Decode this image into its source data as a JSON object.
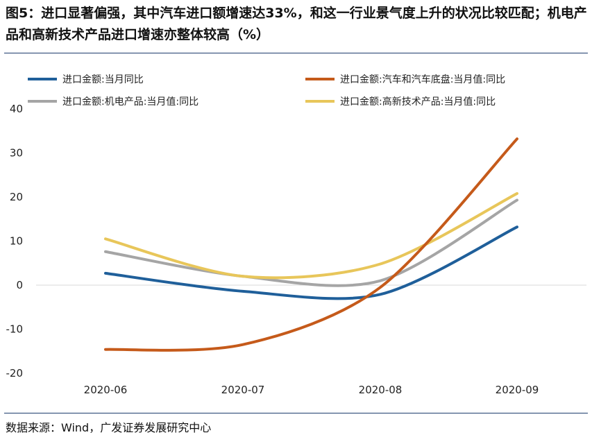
{
  "figure": {
    "title": "图5：进口显著偏强，其中汽车进口额增速达33%，和这一行业景气度上升的状况比较匹配；机电产品和高新技术产品进口增速亦整体较高（%）",
    "source": "数据来源：Wind，广发证券发展研究中心"
  },
  "chart_data": {
    "type": "line",
    "title": "",
    "xlabel": "",
    "ylabel": "",
    "categories": [
      "2020-06",
      "2020-07",
      "2020-08",
      "2020-09"
    ],
    "ylim": [
      -20,
      40
    ],
    "yticks": [
      -20,
      -10,
      0,
      10,
      20,
      30,
      40
    ],
    "grid": false,
    "legend_position": "top",
    "series": [
      {
        "name": "进口金额:当月同比",
        "color": "#1f5f9a",
        "values": [
          2.7,
          -1.4,
          -2.1,
          13.2
        ]
      },
      {
        "name": "进口金额:汽车和汽车底盘:当月值:同比",
        "color": "#c55a1a",
        "values": [
          -14.6,
          -13.5,
          -0.5,
          33.2
        ]
      },
      {
        "name": "进口金额:机电产品:当月值:同比",
        "color": "#a5a5a5",
        "values": [
          7.6,
          2.0,
          1.0,
          19.3
        ]
      },
      {
        "name": "进口金额:高新技术产品:当月值:同比",
        "color": "#e8c65a",
        "values": [
          10.5,
          2.0,
          4.8,
          20.8
        ]
      }
    ]
  }
}
